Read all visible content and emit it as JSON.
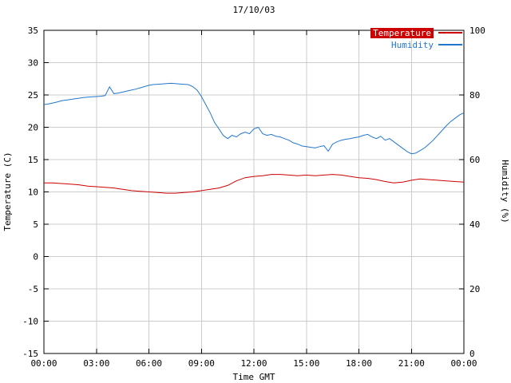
{
  "chart_data": {
    "type": "line",
    "title": "17/10/03",
    "xlabel": "Time GMT",
    "ylabel_left": "Temperature (C)",
    "ylabel_right": "Humidity (%)",
    "grid": true,
    "legend_position": "top-right",
    "x_min": 0,
    "x_max": 24,
    "x_tick_values": [
      0,
      3,
      6,
      9,
      12,
      15,
      18,
      21,
      24
    ],
    "x_tick_labels": [
      "00:00",
      "03:00",
      "06:00",
      "09:00",
      "12:00",
      "15:00",
      "18:00",
      "21:00",
      "00:00"
    ],
    "y_left": {
      "min": -15,
      "max": 35,
      "ticks": [
        -15,
        -10,
        -5,
        0,
        5,
        10,
        15,
        20,
        25,
        30,
        35
      ]
    },
    "y_right": {
      "min": 0,
      "max": 100,
      "ticks": [
        0,
        20,
        40,
        60,
        80,
        100
      ]
    },
    "legend": {
      "entries": [
        {
          "label": "Temperature",
          "color": "#cc0000",
          "filled": true
        },
        {
          "label": "Humidity",
          "color": "#2277cc",
          "filled": false
        }
      ]
    },
    "series": [
      {
        "name": "Temperature",
        "unit": "C",
        "axis": "left",
        "color": "#cc0000",
        "x_start": 0,
        "x_step": 0.5,
        "values": [
          11.4,
          11.4,
          11.3,
          11.2,
          11.1,
          10.9,
          10.8,
          10.7,
          10.6,
          10.4,
          10.2,
          10.1,
          10.0,
          9.9,
          9.8,
          9.8,
          9.9,
          10.0,
          10.2,
          10.4,
          10.6,
          11.0,
          11.7,
          12.2,
          12.4,
          12.5,
          12.7,
          12.7,
          12.6,
          12.5,
          12.6,
          12.5,
          12.6,
          12.7,
          12.6,
          12.4,
          12.2,
          12.1,
          11.9,
          11.6,
          11.4,
          11.5,
          11.8,
          12.0,
          11.9,
          11.8,
          11.7,
          11.6,
          11.5
        ]
      },
      {
        "name": "Humidity",
        "unit": "%",
        "axis": "right",
        "color": "#2277cc",
        "x_start": 0,
        "x_step": 0.25,
        "values": [
          77.0,
          77.2,
          77.5,
          77.8,
          78.2,
          78.4,
          78.6,
          78.8,
          79.0,
          79.2,
          79.3,
          79.4,
          79.5,
          79.6,
          79.8,
          82.5,
          80.4,
          80.6,
          80.9,
          81.2,
          81.5,
          81.8,
          82.2,
          82.6,
          83.0,
          83.2,
          83.3,
          83.4,
          83.5,
          83.6,
          83.5,
          83.4,
          83.3,
          83.2,
          82.6,
          81.5,
          79.5,
          77.0,
          74.5,
          71.5,
          69.5,
          67.5,
          66.5,
          67.5,
          67.0,
          68.0,
          68.5,
          68.0,
          69.5,
          70.0,
          68.0,
          67.5,
          67.8,
          67.2,
          67.0,
          66.5,
          66.0,
          65.2,
          64.8,
          64.2,
          64.0,
          63.8,
          63.6,
          64.0,
          64.3,
          62.6,
          64.8,
          65.5,
          66.0,
          66.3,
          66.5,
          66.8,
          67.0,
          67.5,
          67.8,
          67.0,
          66.5,
          67.2,
          66.0,
          66.5,
          65.5,
          64.5,
          63.5,
          62.5,
          61.8,
          62.0,
          62.8,
          63.6,
          64.8,
          66.0,
          67.5,
          69.0,
          70.5,
          71.8,
          72.8,
          73.8,
          74.5
        ]
      }
    ]
  }
}
